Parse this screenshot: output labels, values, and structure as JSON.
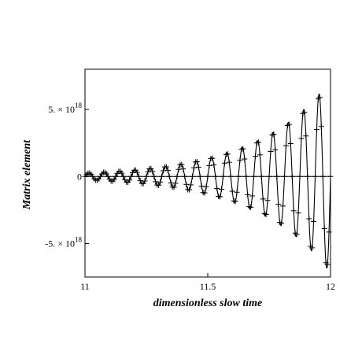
{
  "chart_data": {
    "type": "line",
    "xlabel": "dimensionless slow time",
    "ylabel": "Matrix element",
    "xlim": [
      11,
      12
    ],
    "ylim": [
      -7.5e+18,
      8e+18
    ],
    "x_ticks": [
      {
        "value": 11,
        "label": "11"
      },
      {
        "value": 11.5,
        "label": "11.5"
      },
      {
        "value": 12,
        "label": "12"
      }
    ],
    "y_ticks": [
      {
        "value": 5e+18,
        "mant": "5. × 10",
        "exp": "18"
      },
      {
        "value": 0,
        "mant": "0",
        "exp": ""
      },
      {
        "value": -5e+18,
        "mant": "-5. × 10",
        "exp": "18"
      }
    ],
    "curve": {
      "description": "solid oscillating line with exponentially growing amplitude",
      "x_start": 11,
      "x_end": 12,
      "period": 0.0625,
      "amplitude_start": 2.5e+17,
      "amplitude_end": 7.2e+18
    },
    "markers": {
      "symbol": "+",
      "per_period": 10,
      "x_start": 11,
      "x_end": 12
    },
    "zero_line": true
  }
}
